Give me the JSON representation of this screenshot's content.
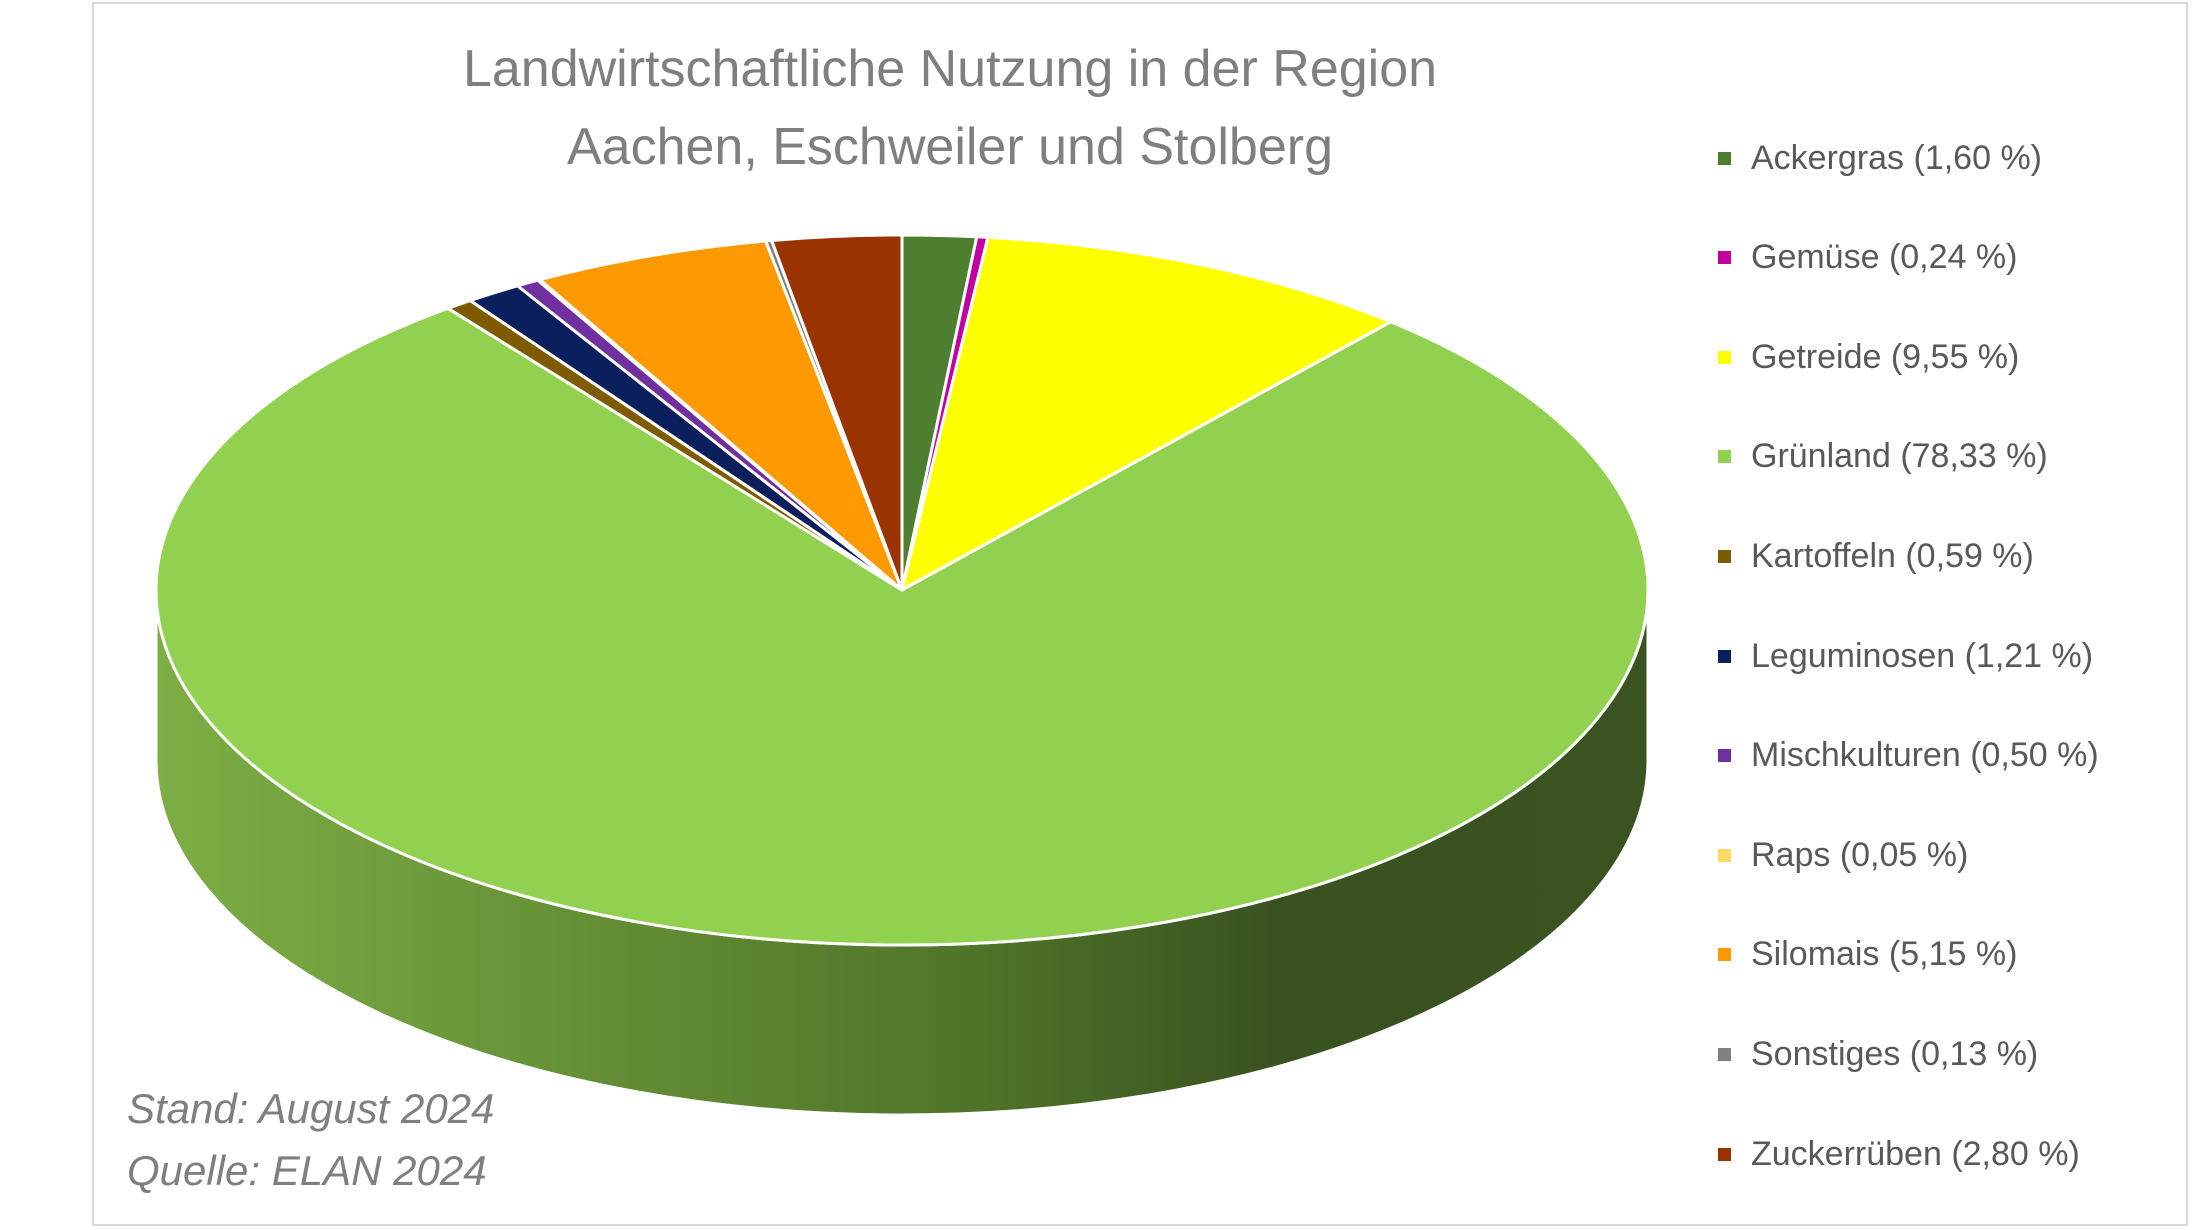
{
  "chart_data": {
    "type": "pie",
    "title": "Landwirtschaftliche Nutzung in der Region Aachen, Eschweiler und Stolberg",
    "title_lines": [
      "Landwirtschaftliche Nutzung in der Region",
      "Aachen, Eschweiler und Stolberg"
    ],
    "legend_position": "right",
    "unit": "%",
    "slices": [
      {
        "name": "Ackergras",
        "value": 1.6,
        "color": "#4e7f31",
        "label": "Ackergras (1,60 %)"
      },
      {
        "name": "Gemüse",
        "value": 0.24,
        "color": "#c200a0",
        "label": "Gemüse (0,24 %)"
      },
      {
        "name": "Getreide",
        "value": 9.55,
        "color": "#ffff00",
        "label": "Getreide (9,55 %)"
      },
      {
        "name": "Grünland",
        "value": 78.33,
        "color": "#92d050",
        "label": "Grünland (78,33 %)"
      },
      {
        "name": "Kartoffeln",
        "value": 0.59,
        "color": "#7f5b00",
        "label": "Kartoffeln (0,59 %)"
      },
      {
        "name": "Leguminosen",
        "value": 1.21,
        "color": "#0b1f5c",
        "label": "Leguminosen (1,21 %)"
      },
      {
        "name": "Mischkulturen",
        "value": 0.5,
        "color": "#7030a0",
        "label": "Mischkulturen (0,50 %)"
      },
      {
        "name": "Raps",
        "value": 0.05,
        "color": "#ffd966",
        "label": "Raps (0,05 %)"
      },
      {
        "name": "Silomais",
        "value": 5.15,
        "color": "#ff9900",
        "label": "Silomais (5,15 %)"
      },
      {
        "name": "Sonstiges",
        "value": 0.13,
        "color": "#808080",
        "label": "Sonstiges (0,13 %)"
      },
      {
        "name": "Zuckerrüben",
        "value": 2.8,
        "color": "#993300",
        "label": "Zuckerrüben (2,80 %)"
      }
    ]
  },
  "notes": {
    "stand": "Stand: August 2024",
    "quelle": "Quelle: ELAN 2024"
  }
}
